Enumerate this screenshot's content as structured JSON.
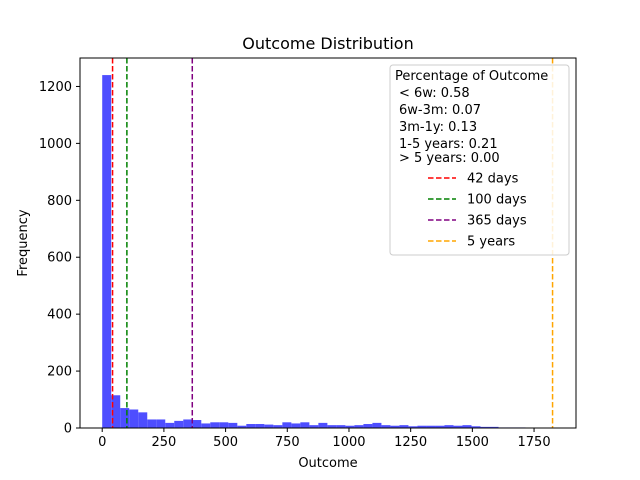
{
  "chart_data": {
    "type": "bar",
    "title": "Outcome Distribution",
    "xlabel": "Outcome",
    "ylabel": "Frequency",
    "xlim": [
      -90,
      1920
    ],
    "ylim": [
      0,
      1300
    ],
    "xticks": [
      "0",
      "250",
      "500",
      "750",
      "1000",
      "1250",
      "1500",
      "1750"
    ],
    "xtick_values": [
      0,
      250,
      500,
      750,
      1000,
      1250,
      1500,
      1750
    ],
    "yticks": [
      "0",
      "200",
      "400",
      "600",
      "800",
      "1000",
      "1200"
    ],
    "ytick_values": [
      0,
      200,
      400,
      600,
      800,
      1000,
      1200
    ],
    "bar_color": "#4444ff",
    "bin_width": 36.5,
    "bin_start": 0,
    "values": [
      1240,
      115,
      70,
      65,
      55,
      30,
      30,
      18,
      25,
      30,
      28,
      16,
      20,
      20,
      18,
      8,
      14,
      14,
      12,
      10,
      20,
      16,
      20,
      10,
      18,
      10,
      10,
      8,
      10,
      14,
      18,
      10,
      8,
      10,
      6,
      8,
      8,
      8,
      10,
      8,
      10,
      6,
      4,
      4,
      2,
      2,
      2,
      0,
      0,
      0
    ],
    "vlines": [
      {
        "x": 42,
        "color": "#ff0000",
        "label": "42 days"
      },
      {
        "x": 100,
        "color": "#008000",
        "label": "100 days"
      },
      {
        "x": 365,
        "color": "#800080",
        "label": "365 days"
      },
      {
        "x": 1825,
        "color": "#ffa500",
        "label": "5 years"
      }
    ],
    "legend": {
      "placement": "top-right",
      "header_lines": [
        "Percentage of Outcome",
        "< 6w: 0.58",
        "6w-3m: 0.07",
        "3m-1y: 0.13",
        "1-5 years: 0.21",
        "> 5 years: 0.00"
      ]
    }
  }
}
